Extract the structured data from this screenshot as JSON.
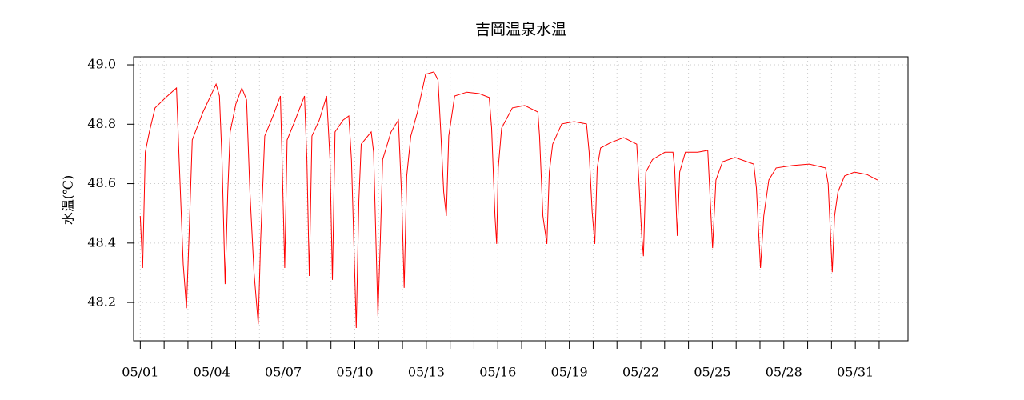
{
  "chart_data": {
    "type": "line",
    "title": "吉岡温泉水温",
    "y_label": "水温(℃)",
    "x": [
      1.0,
      1.1,
      1.21,
      1.38,
      1.62,
      2.07,
      2.52,
      2.63,
      2.8,
      2.94,
      3.04,
      3.18,
      3.63,
      3.98,
      4.18,
      4.32,
      4.43,
      4.56,
      4.67,
      4.77,
      5.01,
      5.26,
      5.46,
      5.6,
      5.77,
      5.95,
      6.05,
      6.22,
      6.57,
      6.88,
      6.95,
      7.06,
      7.16,
      7.5,
      7.89,
      7.99,
      8.09,
      8.2,
      8.51,
      8.82,
      8.96,
      9.06,
      9.17,
      9.51,
      9.75,
      9.86,
      10.0,
      10.06,
      10.17,
      10.27,
      10.69,
      10.79,
      10.97,
      11.07,
      11.17,
      11.52,
      11.83,
      11.97,
      12.07,
      12.18,
      12.35,
      12.63,
      12.97,
      13.32,
      13.49,
      13.6,
      13.73,
      13.84,
      13.94,
      14.19,
      14.7,
      15.22,
      15.64,
      15.74,
      15.88,
      15.95,
      16.02,
      16.16,
      16.61,
      17.13,
      17.68,
      17.75,
      17.89,
      18.06,
      18.16,
      18.3,
      18.68,
      19.2,
      19.72,
      19.83,
      19.96,
      20.07,
      20.17,
      20.31,
      20.76,
      21.28,
      21.83,
      21.9,
      22.04,
      22.11,
      22.21,
      22.49,
      23.01,
      23.35,
      23.42,
      23.53,
      23.63,
      23.87,
      24.39,
      24.81,
      24.88,
      25.01,
      25.15,
      25.43,
      25.95,
      26.74,
      26.85,
      27.02,
      27.16,
      27.37,
      27.68,
      28.37,
      29.06,
      29.75,
      29.86,
      30.03,
      30.13,
      30.27,
      30.55,
      30.96,
      31.48,
      31.93
    ],
    "series": [
      {
        "color": "#ff0000",
        "values": [
          48.491,
          48.316,
          48.706,
          48.774,
          48.855,
          48.89,
          48.922,
          48.681,
          48.329,
          48.181,
          48.41,
          48.747,
          48.841,
          48.9,
          48.935,
          48.895,
          48.681,
          48.262,
          48.572,
          48.774,
          48.868,
          48.922,
          48.882,
          48.572,
          48.302,
          48.127,
          48.41,
          48.76,
          48.828,
          48.895,
          48.681,
          48.316,
          48.747,
          48.814,
          48.895,
          48.681,
          48.289,
          48.76,
          48.814,
          48.895,
          48.681,
          48.276,
          48.774,
          48.814,
          48.828,
          48.681,
          48.289,
          48.114,
          48.545,
          48.733,
          48.774,
          48.706,
          48.154,
          48.41,
          48.681,
          48.774,
          48.814,
          48.545,
          48.249,
          48.626,
          48.76,
          48.841,
          48.968,
          48.976,
          48.949,
          48.787,
          48.572,
          48.491,
          48.76,
          48.895,
          48.908,
          48.903,
          48.89,
          48.787,
          48.491,
          48.397,
          48.653,
          48.787,
          48.855,
          48.863,
          48.841,
          48.76,
          48.491,
          48.397,
          48.639,
          48.733,
          48.801,
          48.809,
          48.801,
          48.706,
          48.504,
          48.397,
          48.653,
          48.72,
          48.739,
          48.755,
          48.733,
          48.639,
          48.424,
          48.356,
          48.639,
          48.681,
          48.706,
          48.706,
          48.653,
          48.424,
          48.639,
          48.706,
          48.706,
          48.712,
          48.599,
          48.383,
          48.612,
          48.674,
          48.688,
          48.666,
          48.585,
          48.316,
          48.491,
          48.612,
          48.653,
          48.661,
          48.666,
          48.653,
          48.599,
          48.302,
          48.491,
          48.572,
          48.626,
          48.639,
          48.631,
          48.612
        ]
      }
    ],
    "xlim": [
      0.72,
      33.21
    ],
    "xticks": [
      {
        "value": 1,
        "label": "05/01"
      },
      {
        "value": 4,
        "label": "05/04"
      },
      {
        "value": 7,
        "label": "05/07"
      },
      {
        "value": 10,
        "label": "05/10"
      },
      {
        "value": 13,
        "label": "05/13"
      },
      {
        "value": 16,
        "label": "05/16"
      },
      {
        "value": 19,
        "label": "05/19"
      },
      {
        "value": 22,
        "label": "05/22"
      },
      {
        "value": 25,
        "label": "05/25"
      },
      {
        "value": 28,
        "label": "05/28"
      },
      {
        "value": 31,
        "label": "05/31"
      }
    ],
    "xminorticks": [
      2,
      3,
      5,
      6,
      8,
      9,
      11,
      12,
      14,
      15,
      17,
      18,
      20,
      21,
      23,
      24,
      26,
      27,
      29,
      30,
      32
    ],
    "ylim": [
      48.071,
      49.027
    ],
    "yticks": [
      48.2,
      48.4,
      48.6,
      48.8,
      {
        "value": 49,
        "label": "49.0"
      }
    ],
    "grid": true
  }
}
